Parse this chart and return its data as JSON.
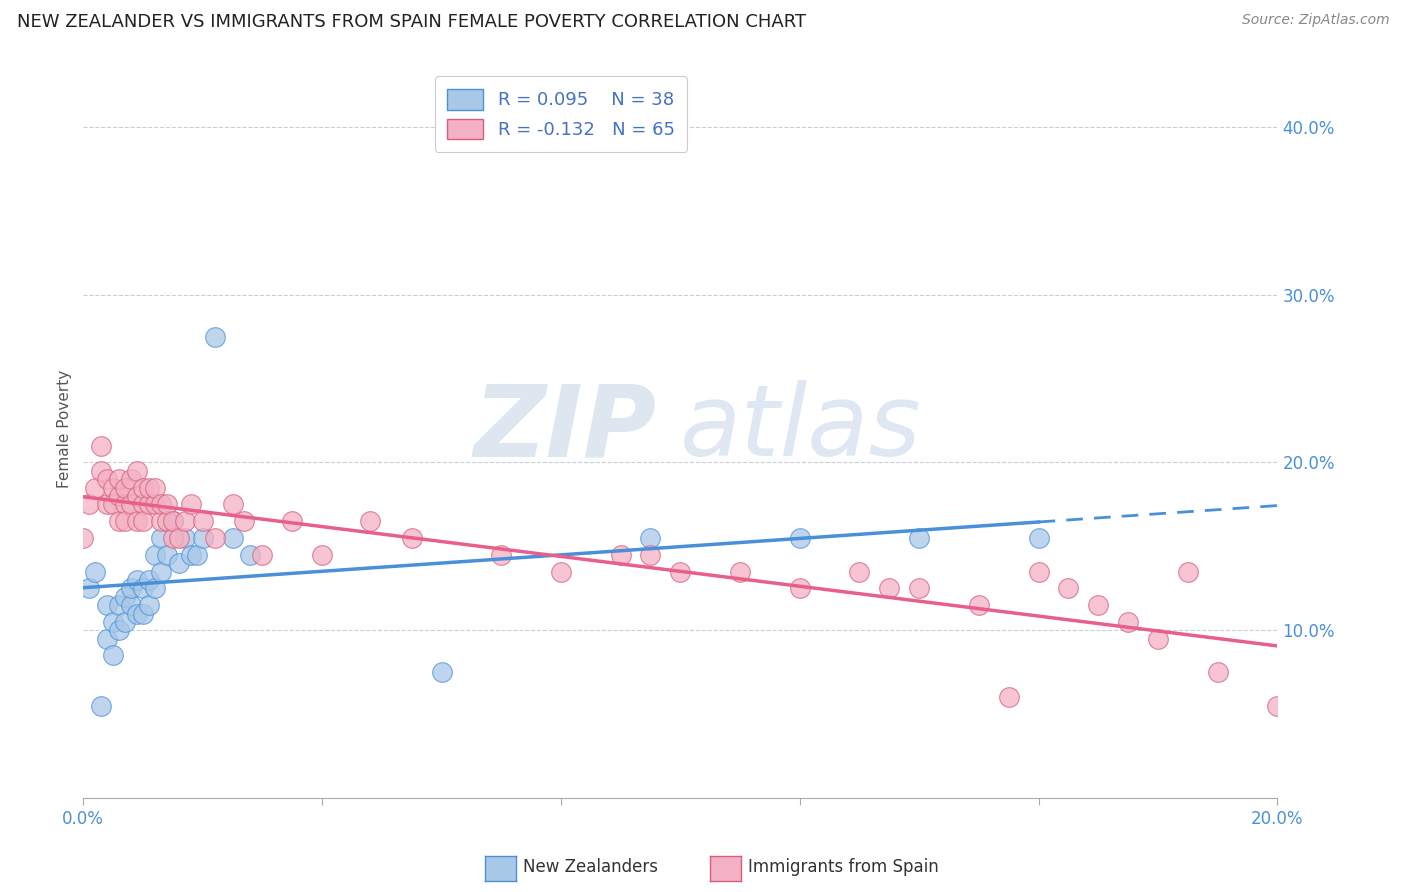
{
  "title": "NEW ZEALANDER VS IMMIGRANTS FROM SPAIN FEMALE POVERTY CORRELATION CHART",
  "source_text": "Source: ZipAtlas.com",
  "ylabel": "Female Poverty",
  "r1": "R = 0.095",
  "n1": "N = 38",
  "r2": "R = -0.132",
  "n2": "N = 65",
  "legend_label1": "New Zealanders",
  "legend_label2": "Immigrants from Spain",
  "xlim": [
    0.0,
    0.2
  ],
  "ylim": [
    0.0,
    0.44
  ],
  "xticks": [
    0.0,
    0.04,
    0.08,
    0.12,
    0.16,
    0.2
  ],
  "yticks": [
    0.1,
    0.2,
    0.3,
    0.4
  ],
  "xtick_labels_left": "0.0%",
  "xtick_labels_right": "20.0%",
  "color1": "#a8c8e8",
  "color2": "#f4b0c4",
  "line_color1": "#4a90d9",
  "line_color2": "#e8608a",
  "tick_color": "#4a90d9",
  "background_color": "#ffffff",
  "watermark_zip": "ZIP",
  "watermark_atlas": "atlas",
  "nz_x": [
    0.001,
    0.002,
    0.003,
    0.004,
    0.004,
    0.005,
    0.005,
    0.006,
    0.006,
    0.007,
    0.007,
    0.008,
    0.008,
    0.009,
    0.009,
    0.01,
    0.01,
    0.011,
    0.011,
    0.012,
    0.012,
    0.013,
    0.013,
    0.014,
    0.015,
    0.016,
    0.017,
    0.018,
    0.019,
    0.02,
    0.022,
    0.025,
    0.028,
    0.06,
    0.095,
    0.12,
    0.14,
    0.16
  ],
  "nz_y": [
    0.125,
    0.135,
    0.055,
    0.095,
    0.115,
    0.085,
    0.105,
    0.1,
    0.115,
    0.105,
    0.12,
    0.115,
    0.125,
    0.11,
    0.13,
    0.11,
    0.125,
    0.115,
    0.13,
    0.125,
    0.145,
    0.135,
    0.155,
    0.145,
    0.165,
    0.14,
    0.155,
    0.145,
    0.145,
    0.155,
    0.275,
    0.155,
    0.145,
    0.075,
    0.155,
    0.155,
    0.155,
    0.155
  ],
  "sp_x": [
    0.0,
    0.001,
    0.002,
    0.003,
    0.003,
    0.004,
    0.004,
    0.005,
    0.005,
    0.006,
    0.006,
    0.006,
    0.007,
    0.007,
    0.007,
    0.008,
    0.008,
    0.009,
    0.009,
    0.009,
    0.01,
    0.01,
    0.01,
    0.011,
    0.011,
    0.012,
    0.012,
    0.013,
    0.013,
    0.014,
    0.014,
    0.015,
    0.015,
    0.016,
    0.017,
    0.018,
    0.02,
    0.022,
    0.025,
    0.027,
    0.03,
    0.035,
    0.04,
    0.048,
    0.055,
    0.07,
    0.08,
    0.09,
    0.095,
    0.1,
    0.11,
    0.12,
    0.13,
    0.135,
    0.14,
    0.15,
    0.155,
    0.16,
    0.165,
    0.17,
    0.175,
    0.18,
    0.185,
    0.19,
    0.2
  ],
  "sp_y": [
    0.155,
    0.175,
    0.185,
    0.21,
    0.195,
    0.19,
    0.175,
    0.185,
    0.175,
    0.18,
    0.19,
    0.165,
    0.175,
    0.185,
    0.165,
    0.175,
    0.19,
    0.165,
    0.18,
    0.195,
    0.175,
    0.185,
    0.165,
    0.175,
    0.185,
    0.175,
    0.185,
    0.165,
    0.175,
    0.165,
    0.175,
    0.155,
    0.165,
    0.155,
    0.165,
    0.175,
    0.165,
    0.155,
    0.175,
    0.165,
    0.145,
    0.165,
    0.145,
    0.165,
    0.155,
    0.145,
    0.135,
    0.145,
    0.145,
    0.135,
    0.135,
    0.125,
    0.135,
    0.125,
    0.125,
    0.115,
    0.06,
    0.135,
    0.125,
    0.115,
    0.105,
    0.095,
    0.135,
    0.075,
    0.055
  ]
}
